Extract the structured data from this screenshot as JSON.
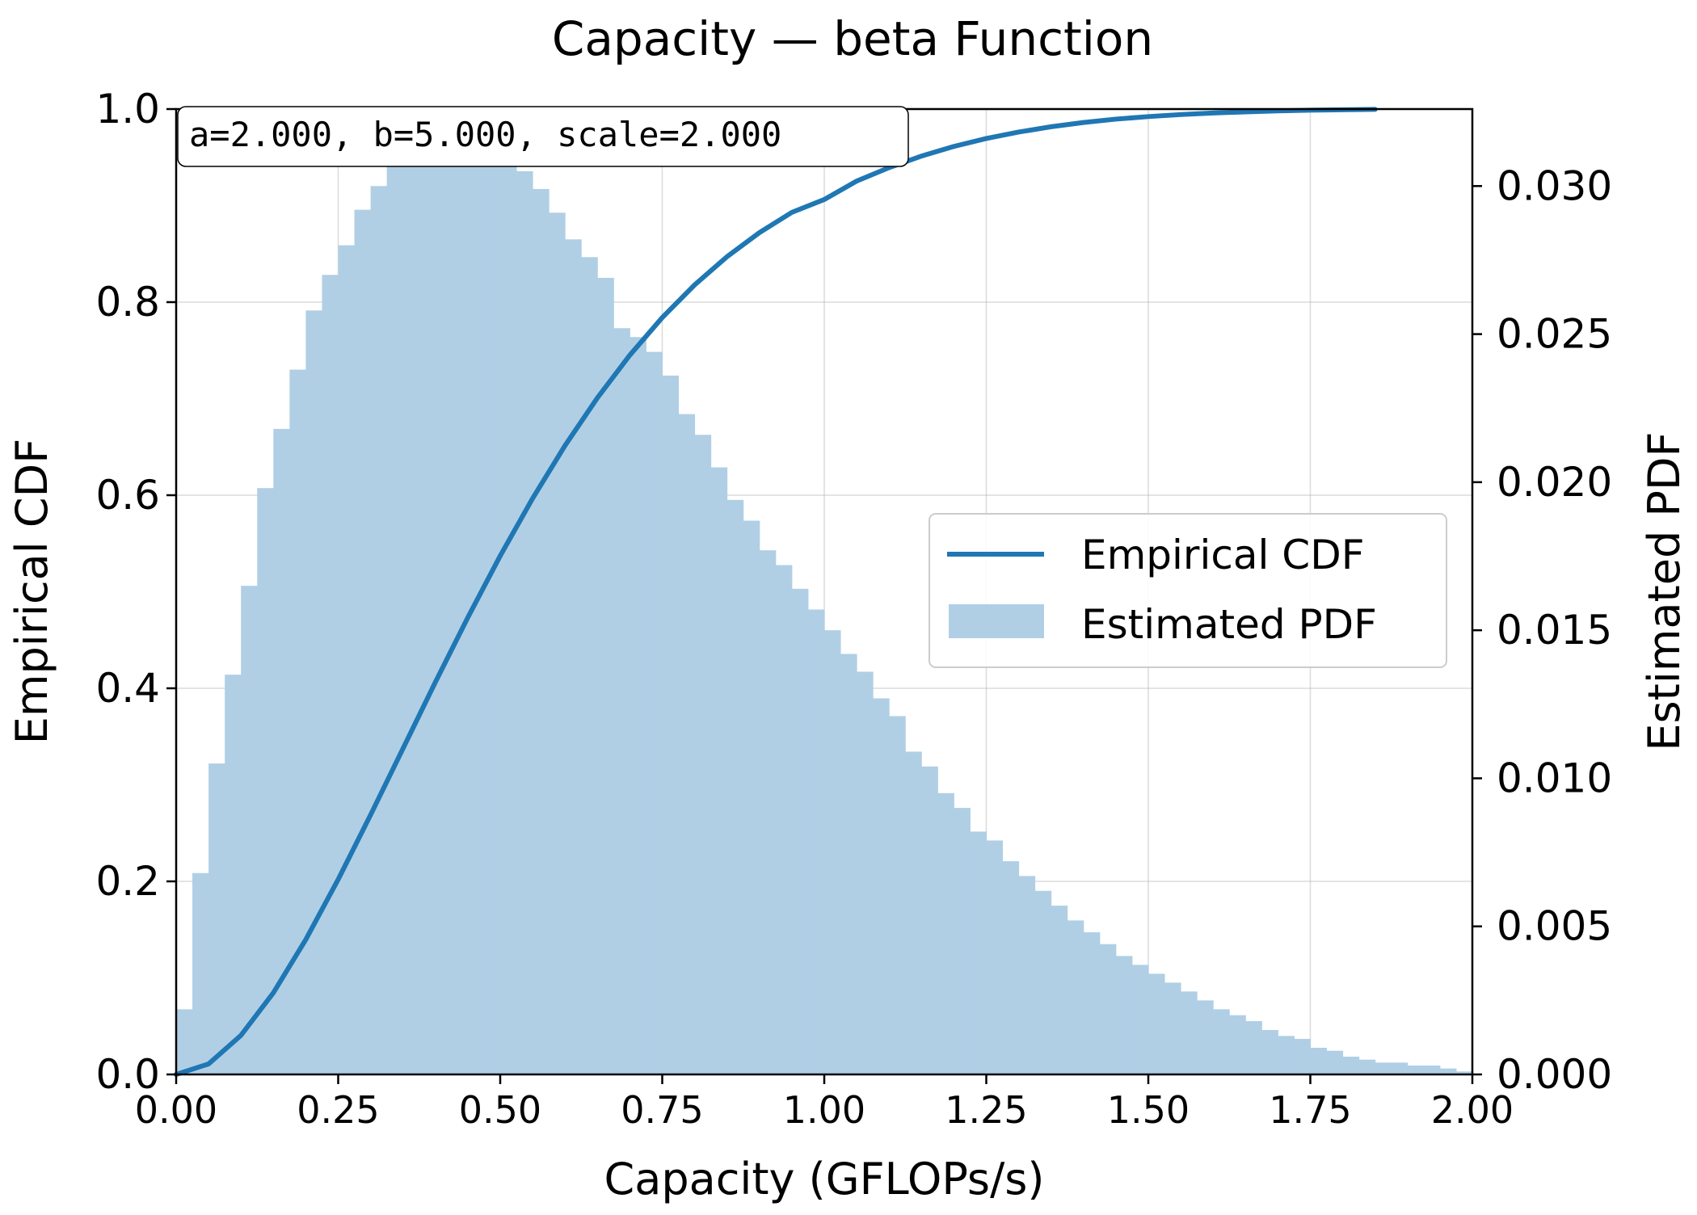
{
  "chart_data": {
    "type": "bar",
    "title": "Capacity — beta Function",
    "xlabel": "Capacity (GFLOPs/s)",
    "ylabel_left": "Empirical CDF",
    "ylabel_right": "Estimated PDF",
    "annotation": "a=2.000, b=5.000, scale=2.000",
    "xlim": [
      0.0,
      2.0
    ],
    "ylim_left": [
      0.0,
      1.0
    ],
    "ylim_right": [
      0.0,
      0.0326
    ],
    "x_ticks": [
      "0.00",
      "0.25",
      "0.50",
      "0.75",
      "1.00",
      "1.25",
      "1.50",
      "1.75",
      "2.00"
    ],
    "y_left_ticks": [
      "0.0",
      "0.2",
      "0.4",
      "0.6",
      "0.8",
      "1.0"
    ],
    "y_right_ticks": [
      "0.000",
      "0.005",
      "0.010",
      "0.015",
      "0.020",
      "0.025",
      "0.030"
    ],
    "grid": true,
    "legend_position": "center-right",
    "colors": {
      "line": "#1f77b4",
      "bars": "#b0cfe5"
    },
    "series": [
      {
        "name": "Empirical CDF",
        "type": "line",
        "axis": "left",
        "x": [
          0.0,
          0.05,
          0.1,
          0.15,
          0.2,
          0.25,
          0.3,
          0.35,
          0.4,
          0.45,
          0.5,
          0.55,
          0.6,
          0.65,
          0.7,
          0.75,
          0.8,
          0.85,
          0.9,
          0.95,
          1.0,
          1.05,
          1.1,
          1.15,
          1.2,
          1.25,
          1.3,
          1.35,
          1.4,
          1.45,
          1.5,
          1.55,
          1.6,
          1.65,
          1.7,
          1.75,
          1.8,
          1.85
        ],
        "y": [
          0.0,
          0.0109,
          0.0405,
          0.0846,
          0.1397,
          0.202,
          0.2689,
          0.3376,
          0.4064,
          0.4733,
          0.5372,
          0.5967,
          0.6514,
          0.7009,
          0.7451,
          0.784,
          0.8179,
          0.8471,
          0.872,
          0.893,
          0.9063,
          0.9254,
          0.9393,
          0.9513,
          0.9613,
          0.9695,
          0.9762,
          0.9817,
          0.9861,
          0.9896,
          0.9922,
          0.9943,
          0.9959,
          0.9971,
          0.9981,
          0.9988,
          0.9993,
          0.9997
        ]
      },
      {
        "name": "Estimated PDF",
        "type": "bar",
        "axis": "right",
        "bin_start": 0.0,
        "bin_width": 0.025,
        "values": [
          0.0022,
          0.0068,
          0.0105,
          0.0135,
          0.0165,
          0.0198,
          0.0218,
          0.0238,
          0.0258,
          0.027,
          0.028,
          0.0292,
          0.03,
          0.0307,
          0.0313,
          0.0316,
          0.0316,
          0.032,
          0.0319,
          0.0316,
          0.0313,
          0.0305,
          0.0299,
          0.0291,
          0.0282,
          0.0276,
          0.0269,
          0.0252,
          0.0249,
          0.0244,
          0.0236,
          0.0223,
          0.0216,
          0.0205,
          0.0194,
          0.0187,
          0.0177,
          0.0172,
          0.0164,
          0.0157,
          0.015,
          0.0142,
          0.0136,
          0.0127,
          0.0121,
          0.0109,
          0.0104,
          0.0095,
          0.009,
          0.0082,
          0.0079,
          0.0072,
          0.0067,
          0.0062,
          0.0057,
          0.0052,
          0.0048,
          0.0044,
          0.004,
          0.0037,
          0.0034,
          0.0031,
          0.0028,
          0.0025,
          0.0022,
          0.002,
          0.0018,
          0.0015,
          0.0013,
          0.0012,
          0.0009,
          0.0008,
          0.0006,
          0.0005,
          0.0004,
          0.0004,
          0.0003,
          0.0003,
          0.0002,
          0.0001
        ]
      }
    ]
  }
}
